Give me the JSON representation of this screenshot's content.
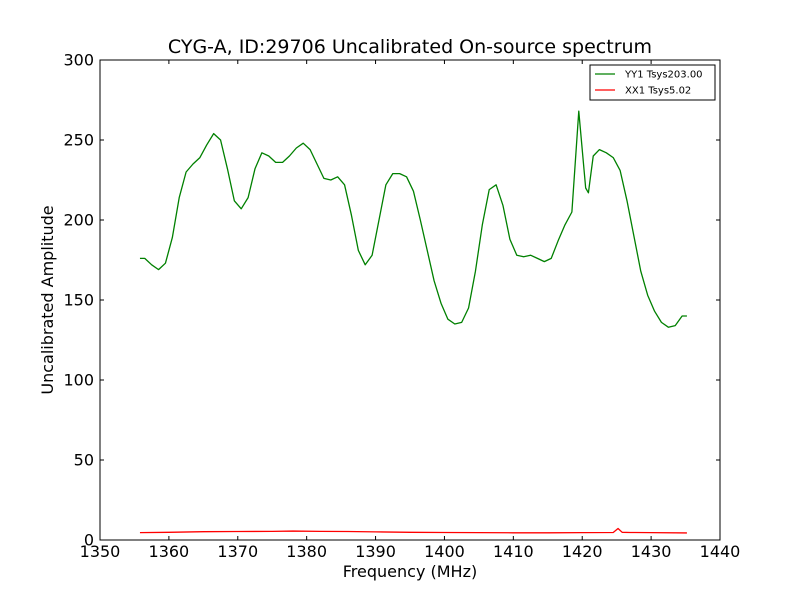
{
  "chart_data": {
    "type": "line",
    "title": "CYG-A, ID:29706 Uncalibrated On-source spectrum",
    "xlabel": "Frequency (MHz)",
    "ylabel": "Uncalibrated Amplitude",
    "xlim": [
      1350,
      1440
    ],
    "ylim": [
      0,
      300
    ],
    "xticks": [
      1350,
      1360,
      1370,
      1380,
      1390,
      1400,
      1410,
      1420,
      1430,
      1440
    ],
    "xtick_labels": [
      "1350",
      "1360",
      "1370",
      "1380",
      "1390",
      "1400",
      "1410",
      "1420",
      "1430",
      "1440"
    ],
    "yticks": [
      0,
      50,
      100,
      150,
      200,
      250,
      300
    ],
    "ytick_labels": [
      "0",
      "50",
      "100",
      "150",
      "200",
      "250",
      "300"
    ],
    "grid": false,
    "legend_position": "top-right",
    "series": [
      {
        "name": "YY1 Tsys203.00",
        "color": "#008000",
        "x": [
          1355.8,
          1356.5,
          1357.5,
          1358.5,
          1359.5,
          1360.5,
          1361.5,
          1362.5,
          1363.5,
          1364.5,
          1365.5,
          1366.5,
          1367.5,
          1368.5,
          1369.5,
          1370.5,
          1371.5,
          1372.5,
          1373.5,
          1374.5,
          1375.5,
          1376.5,
          1377.5,
          1378.5,
          1379.5,
          1380.5,
          1381.5,
          1382.5,
          1383.5,
          1384.5,
          1385.5,
          1386.5,
          1387.5,
          1388.5,
          1389.5,
          1390.5,
          1391.5,
          1392.5,
          1393.5,
          1394.5,
          1395.5,
          1396.5,
          1397.5,
          1398.5,
          1399.5,
          1400.5,
          1401.5,
          1402.5,
          1403.5,
          1404.5,
          1405.5,
          1406.5,
          1407.5,
          1408.5,
          1409.5,
          1410.5,
          1411.5,
          1412.5,
          1413.5,
          1414.5,
          1415.5,
          1416.5,
          1417.5,
          1418.5,
          1419.5,
          1420.5,
          1420.9,
          1421.2,
          1421.6,
          1422.5,
          1423.5,
          1424.5,
          1425.5,
          1426.5,
          1427.5,
          1428.5,
          1429.5,
          1430.5,
          1431.5,
          1432.5,
          1433.5,
          1434.5,
          1435.2
        ],
        "values": [
          176,
          176,
          172,
          169,
          173,
          189,
          214,
          230,
          235,
          239,
          247,
          254,
          250,
          232,
          212,
          207,
          214,
          232,
          242,
          240,
          236,
          236,
          240,
          245,
          248,
          244,
          235,
          226,
          225,
          227,
          222,
          203,
          181,
          172,
          178,
          200,
          222,
          229,
          229,
          227,
          218,
          200,
          181,
          162,
          148,
          138,
          135,
          136,
          145,
          168,
          197,
          219,
          222,
          209,
          188,
          178,
          177,
          178,
          176,
          174,
          176,
          187,
          197,
          205,
          268,
          220,
          217,
          227,
          240,
          244,
          242,
          239,
          231,
          212,
          190,
          168,
          153,
          143,
          136,
          133,
          134,
          140,
          140
        ]
      },
      {
        "name": "XX1 Tsys5.02",
        "color": "#ff0000",
        "x": [
          1355.8,
          1360,
          1365,
          1370,
          1375,
          1378,
          1382,
          1386,
          1390,
          1395,
          1400,
          1405,
          1410,
          1415,
          1420,
          1424.5,
          1425.2,
          1425.8,
          1427,
          1430,
          1435.2
        ],
        "values": [
          4.6,
          4.8,
          5.2,
          5.3,
          5.4,
          5.6,
          5.4,
          5.3,
          5.1,
          4.8,
          4.7,
          4.6,
          4.5,
          4.5,
          4.6,
          4.7,
          7.2,
          4.8,
          4.7,
          4.6,
          4.4
        ]
      }
    ]
  }
}
